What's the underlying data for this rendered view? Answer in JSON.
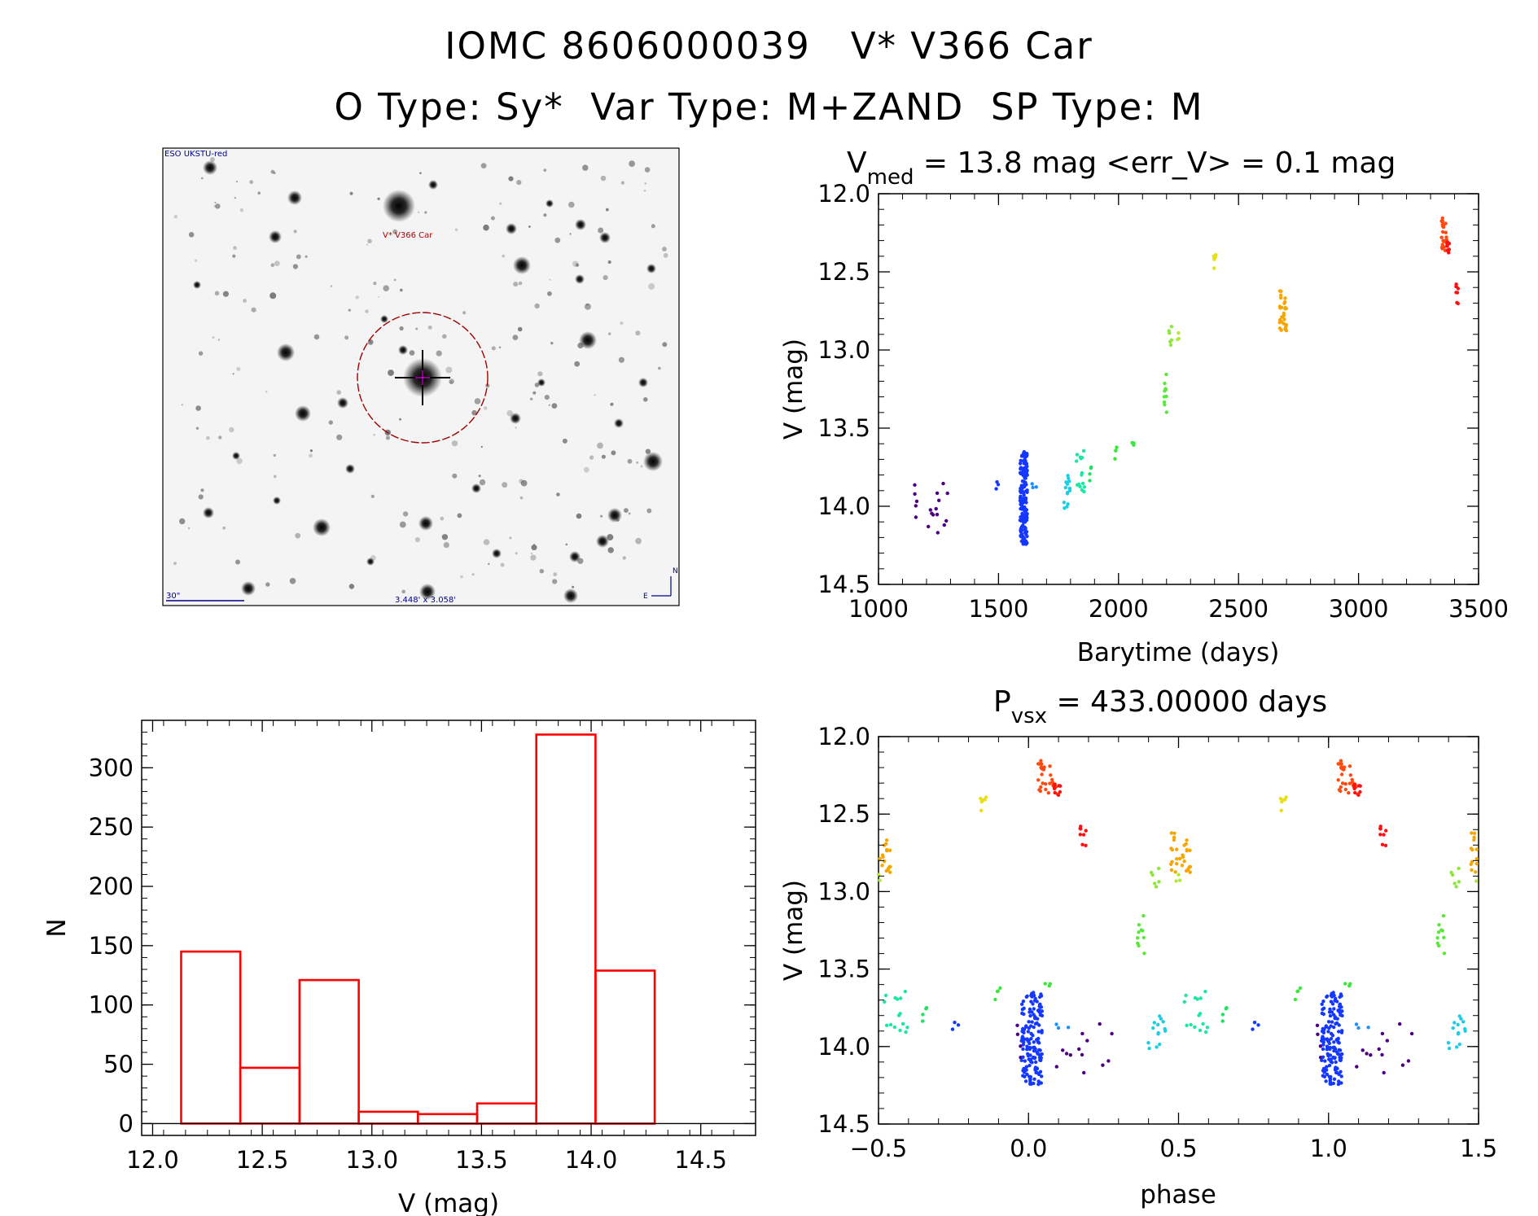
{
  "header": {
    "title_line1": "IOMC 8606000039   V* V366 Car",
    "title_line2": "O Type: Sy*  Var Type: M+ZAND  SP Type: M"
  },
  "finder": {
    "survey_label": "ESO UKSTU-red",
    "target_label": "V* V366 Car",
    "scale_label": "30\"",
    "fov_label": "3.448' x 3.058'",
    "north_label": "N",
    "east_label": "E"
  },
  "chart_data": [
    {
      "id": "lightcurve",
      "type": "scatter",
      "title_main": "V",
      "title_sub": "med",
      "title_rest": " = 13.8 mag <err_V> = 0.1 mag",
      "xlabel": "Barytime (days)",
      "ylabel": "V (mag)",
      "xlim": [
        1000,
        3500
      ],
      "ylim": [
        14.5,
        12.0
      ],
      "xticks": [
        1000,
        1500,
        2000,
        2500,
        3000,
        3500
      ],
      "xticklabels": [
        "1000",
        "1500",
        "2000",
        "2500",
        "3000",
        "3500"
      ],
      "yticks": [
        12.0,
        12.5,
        13.0,
        13.5,
        14.0,
        14.5
      ],
      "yticklabels": [
        "12.0",
        "12.5",
        "13.0",
        "13.5",
        "14.0",
        "14.5"
      ],
      "groups": [
        {
          "color": "#4b0082",
          "t": [
            1150,
            1290
          ],
          "v": [
            13.85,
            14.18
          ],
          "n": 18
        },
        {
          "color": "#1438ff",
          "t": [
            1490,
            1500
          ],
          "v": [
            13.83,
            13.9
          ],
          "n": 3
        },
        {
          "color": "#1438ff",
          "t": [
            1590,
            1620
          ],
          "v": [
            13.65,
            14.25
          ],
          "n": 150
        },
        {
          "color": "#1c90ff",
          "t": [
            1640,
            1660
          ],
          "v": [
            13.85,
            13.9
          ],
          "n": 3
        },
        {
          "color": "#1ccde8",
          "t": [
            1770,
            1800
          ],
          "v": [
            13.8,
            14.02
          ],
          "n": 14
        },
        {
          "color": "#1be8a0",
          "t": [
            1820,
            1860
          ],
          "v": [
            13.6,
            13.92
          ],
          "n": 15
        },
        {
          "color": "#22e060",
          "t": [
            1880,
            1890
          ],
          "v": [
            13.75,
            13.85
          ],
          "n": 4
        },
        {
          "color": "#3ae83a",
          "t": [
            1985,
            1995
          ],
          "v": [
            13.6,
            13.7
          ],
          "n": 4
        },
        {
          "color": "#3ae83a",
          "t": [
            2055,
            2065
          ],
          "v": [
            13.58,
            13.62
          ],
          "n": 3
        },
        {
          "color": "#5ae83a",
          "t": [
            2190,
            2200
          ],
          "v": [
            13.15,
            13.4
          ],
          "n": 10
        },
        {
          "color": "#8ce83a",
          "t": [
            2210,
            2225
          ],
          "v": [
            12.85,
            12.98
          ],
          "n": 6
        },
        {
          "color": "#b4e83a",
          "t": [
            2245,
            2255
          ],
          "v": [
            12.87,
            12.94
          ],
          "n": 3
        },
        {
          "color": "#e8e010",
          "t": [
            2395,
            2405
          ],
          "v": [
            12.38,
            12.48
          ],
          "n": 6
        },
        {
          "color": "#f7a500",
          "t": [
            2670,
            2700
          ],
          "v": [
            12.62,
            12.88
          ],
          "n": 30
        },
        {
          "color": "#ff4a10",
          "t": [
            3345,
            3375
          ],
          "v": [
            12.15,
            12.38
          ],
          "n": 30
        },
        {
          "color": "#ff1010",
          "t": [
            3365,
            3380
          ],
          "v": [
            12.3,
            12.42
          ],
          "n": 8
        },
        {
          "color": "#ff1010",
          "t": [
            3405,
            3415
          ],
          "v": [
            12.55,
            12.72
          ],
          "n": 8
        }
      ]
    },
    {
      "id": "histogram",
      "type": "bar",
      "xlabel": "V (mag)",
      "ylabel": "N",
      "xlim": [
        11.95,
        14.75
      ],
      "ylim": [
        -10,
        340
      ],
      "xticks": [
        12.0,
        12.5,
        13.0,
        13.5,
        14.0,
        14.5
      ],
      "xticklabels": [
        "12.0",
        "12.5",
        "13.0",
        "13.5",
        "14.0",
        "14.5"
      ],
      "yticks": [
        0,
        50,
        100,
        150,
        200,
        250,
        300
      ],
      "yticklabels": [
        "0",
        "50",
        "100",
        "150",
        "200",
        "250",
        "300"
      ],
      "bin_edges": [
        12.13,
        12.4,
        12.67,
        12.94,
        13.21,
        13.48,
        13.75,
        14.02,
        14.29
      ],
      "values": [
        145,
        47,
        121,
        10,
        8,
        17,
        328,
        129
      ],
      "color": "#ff0000"
    },
    {
      "id": "phased",
      "type": "scatter",
      "title_main": "P",
      "title_sub": "vsx",
      "title_rest": " = 433.00000 days",
      "xlabel": "phase",
      "ylabel": "V (mag)",
      "xlim": [
        -0.5,
        1.5
      ],
      "ylim": [
        14.5,
        12.0
      ],
      "xticks": [
        -0.5,
        0.0,
        0.5,
        1.0,
        1.5
      ],
      "xticklabels": [
        "−0.5",
        "0.0",
        "0.5",
        "1.0",
        "1.5"
      ],
      "yticks": [
        12.0,
        12.5,
        13.0,
        13.5,
        14.0,
        14.5
      ],
      "yticklabels": [
        "12.0",
        "12.5",
        "13.0",
        "13.5",
        "14.0",
        "14.5"
      ],
      "period_days": 433.0,
      "epoch_phase_zero_day": 1600
    }
  ]
}
